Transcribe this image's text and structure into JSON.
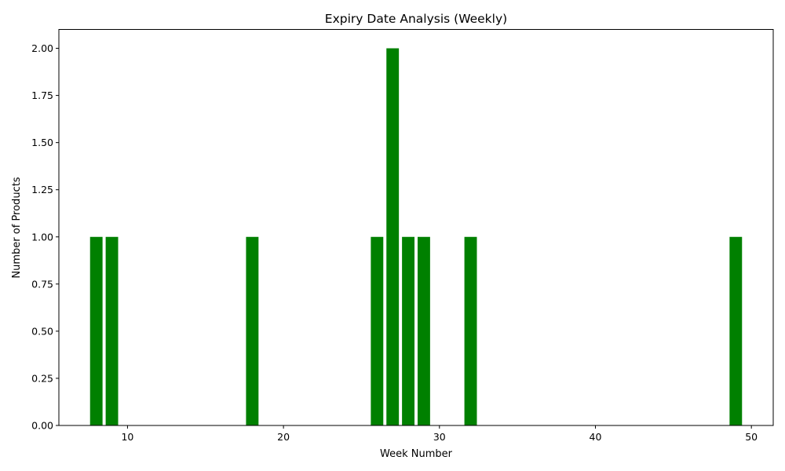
{
  "chart_data": {
    "type": "bar",
    "title": "Expiry Date Analysis (Weekly)",
    "xlabel": "Week Number",
    "ylabel": "Number of Products",
    "x": [
      8,
      9,
      18,
      26,
      27,
      28,
      29,
      32,
      49
    ],
    "values": [
      1,
      1,
      1,
      1,
      2,
      1,
      1,
      1,
      1
    ],
    "bar_color": "#008000",
    "xlim": [
      5.6,
      51.4
    ],
    "ylim": [
      0,
      2.1
    ],
    "xticks": [
      10,
      20,
      30,
      40,
      50
    ],
    "yticks": [
      0,
      0.25,
      0.5,
      0.75,
      1.0,
      1.25,
      1.5,
      1.75,
      2.0
    ],
    "ytick_labels": [
      "0.00",
      "0.25",
      "0.50",
      "0.75",
      "1.00",
      "1.25",
      "1.50",
      "1.75",
      "2.00"
    ],
    "grid": false,
    "legend": "none"
  }
}
